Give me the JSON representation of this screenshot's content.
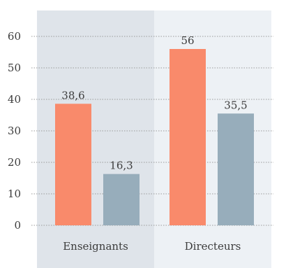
{
  "chart_data": {
    "type": "bar",
    "categories": [
      "Enseignants",
      "Directeurs"
    ],
    "series": [
      {
        "values": [
          38.6,
          56
        ],
        "color": "#f98a6b"
      },
      {
        "values": [
          16.3,
          35.5
        ],
        "color": "#97adbb"
      }
    ],
    "value_labels": [
      [
        "38,6",
        "56"
      ],
      [
        "16,3",
        "35,5"
      ]
    ],
    "yticks": [
      "0",
      "10",
      "20",
      "30",
      "40",
      "50",
      "60"
    ],
    "ylim": [
      0,
      60
    ],
    "grid": true,
    "panel_colors": [
      "#dfe4ea",
      "#edf1f5"
    ]
  }
}
